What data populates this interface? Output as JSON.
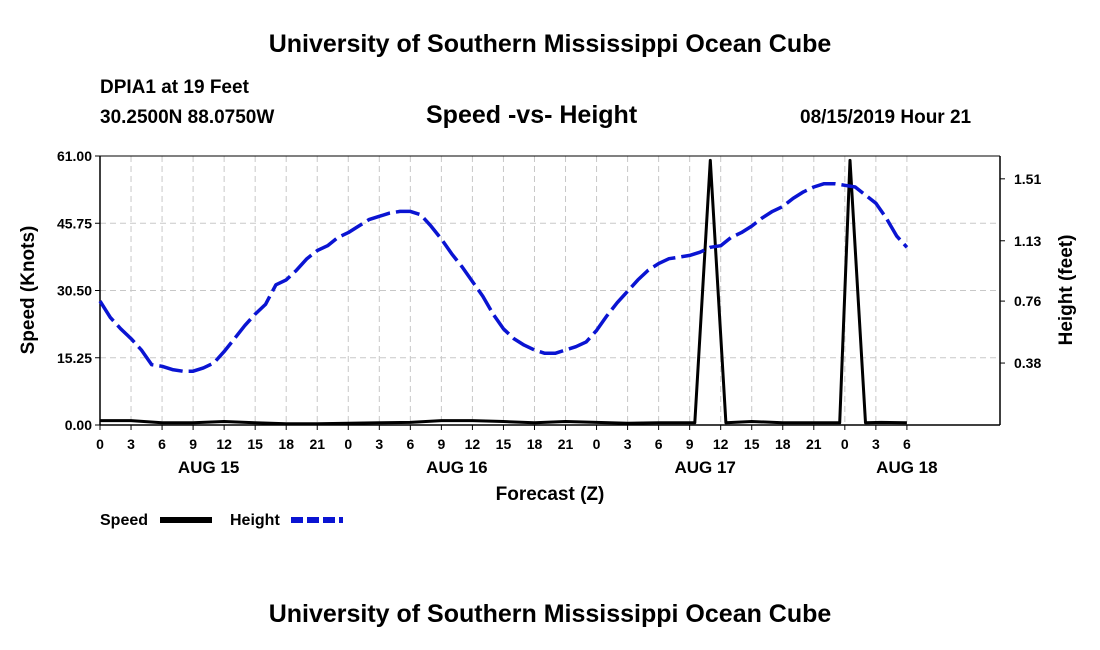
{
  "header": {
    "title": "University of Southern Mississippi Ocean Cube",
    "station": "DPIA1 at 19 Feet",
    "coords": "30.2500N 88.0750W",
    "chart_title": "Speed -vs- Height",
    "timestamp": "08/15/2019 Hour 21"
  },
  "footer": {
    "title": "University of Southern Mississippi Ocean Cube"
  },
  "legend": {
    "items": [
      {
        "label": "Speed",
        "color": "#000000"
      },
      {
        "label": "Height",
        "color": "#0a14d2"
      }
    ]
  },
  "chart_data": {
    "type": "line",
    "title": "Speed -vs- Height",
    "xlabel": "Forecast (Z)",
    "ylabel_left": "Speed (Knots)",
    "ylabel_right": "Height (feet)",
    "ylim_left": [
      0,
      61
    ],
    "ylim_right": [
      0,
      1.65
    ],
    "x_hours_range": [
      0,
      87
    ],
    "left_ticks": [
      "0.00",
      "15.25",
      "30.50",
      "45.75",
      "61.00"
    ],
    "left_tick_values": [
      0,
      15.25,
      30.5,
      45.75,
      61
    ],
    "right_ticks": [
      "0.38",
      "0.76",
      "1.13",
      "1.51"
    ],
    "right_tick_values": [
      0.38,
      0.76,
      1.13,
      1.51
    ],
    "x_ticks": [
      "0",
      "3",
      "6",
      "9",
      "12",
      "15",
      "18",
      "21",
      "0",
      "3",
      "6",
      "9",
      "12",
      "15",
      "18",
      "21",
      "0",
      "3",
      "6",
      "9",
      "12",
      "15",
      "18",
      "21",
      "0",
      "3",
      "6"
    ],
    "x_tick_hours": [
      0,
      3,
      6,
      9,
      12,
      15,
      18,
      21,
      24,
      27,
      30,
      33,
      36,
      39,
      42,
      45,
      48,
      51,
      54,
      57,
      60,
      63,
      66,
      69,
      72,
      75,
      78
    ],
    "date_labels": [
      {
        "label": "AUG 15",
        "hour": 10.5
      },
      {
        "label": "AUG 16",
        "hour": 34.5
      },
      {
        "label": "AUG 17",
        "hour": 58.5
      },
      {
        "label": "AUG 18",
        "hour": 78
      }
    ],
    "grid": true,
    "legend_position": "bottom-left",
    "series": [
      {
        "name": "Speed",
        "axis": "left",
        "color": "#000000",
        "style": "solid",
        "x": [
          0,
          3,
          6,
          9,
          12,
          15,
          18,
          21,
          24,
          27,
          30,
          33,
          36,
          39,
          42,
          45,
          48,
          51,
          54,
          56,
          57.5,
          59,
          60.5,
          63,
          66,
          69,
          71.5,
          72,
          72.5,
          74,
          75.5,
          78
        ],
        "y": [
          1,
          1,
          0.5,
          0.5,
          0.8,
          0.5,
          0.3,
          0.3,
          0.4,
          0.5,
          0.6,
          1.0,
          1.0,
          0.8,
          0.5,
          0.8,
          0.6,
          0.4,
          0.5,
          0.5,
          0.5,
          60,
          0.5,
          0.8,
          0.5,
          0.5,
          0.5,
          30,
          60,
          0.5,
          0.6,
          0.5
        ]
      },
      {
        "name": "Height",
        "axis": "right",
        "color": "#0a14d2",
        "style": "dashed",
        "x": [
          0,
          1,
          2,
          3,
          4,
          5,
          6,
          7,
          8,
          9,
          10,
          11,
          12,
          13,
          14,
          15,
          16,
          17,
          18,
          19,
          20,
          21,
          22,
          23,
          24,
          25,
          26,
          27,
          28,
          29,
          30,
          31,
          32,
          33,
          34,
          35,
          36,
          37,
          38,
          39,
          40,
          41,
          42,
          43,
          44,
          45,
          46,
          47,
          48,
          49,
          50,
          51,
          52,
          53,
          54,
          55,
          56,
          57,
          58,
          59,
          60,
          61,
          62,
          63,
          64,
          65,
          66,
          67,
          68,
          69,
          70,
          71,
          72,
          73,
          74,
          75,
          76,
          77,
          78
        ],
        "y": [
          0.76,
          0.66,
          0.59,
          0.53,
          0.46,
          0.37,
          0.36,
          0.34,
          0.33,
          0.33,
          0.35,
          0.38,
          0.45,
          0.53,
          0.61,
          0.68,
          0.74,
          0.86,
          0.89,
          0.95,
          1.02,
          1.07,
          1.1,
          1.15,
          1.18,
          1.22,
          1.26,
          1.28,
          1.3,
          1.31,
          1.31,
          1.29,
          1.22,
          1.14,
          1.05,
          0.97,
          0.88,
          0.79,
          0.68,
          0.59,
          0.53,
          0.49,
          0.46,
          0.44,
          0.44,
          0.46,
          0.48,
          0.51,
          0.58,
          0.67,
          0.75,
          0.82,
          0.89,
          0.95,
          0.99,
          1.02,
          1.03,
          1.04,
          1.06,
          1.09,
          1.1,
          1.15,
          1.18,
          1.22,
          1.27,
          1.31,
          1.34,
          1.39,
          1.43,
          1.46,
          1.48,
          1.48,
          1.47,
          1.46,
          1.41,
          1.36,
          1.27,
          1.16,
          1.09
        ]
      }
    ]
  }
}
